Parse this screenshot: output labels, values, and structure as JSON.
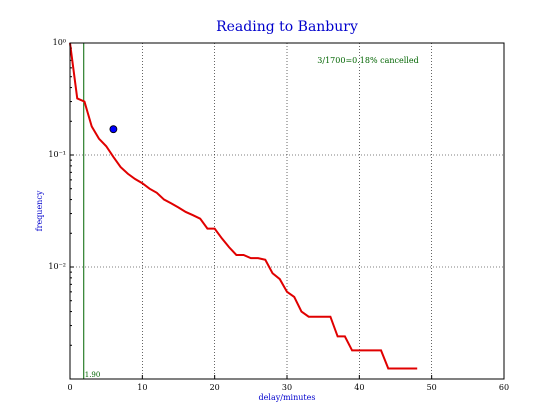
{
  "chart_data": {
    "type": "line",
    "title": "Reading to Banbury",
    "x_label": "delay/minutes",
    "y_label": "frequency",
    "log_y": true,
    "grid": true,
    "xlim": [
      0,
      60
    ],
    "xticks": [
      0,
      10,
      20,
      30,
      40,
      50,
      60
    ],
    "ylim": [
      0.001,
      1
    ],
    "yticks": [
      {
        "value": 1,
        "label": "10⁰"
      },
      {
        "value": 0.1,
        "label": "10⁻¹"
      },
      {
        "value": 0.01,
        "label": "10⁻²"
      }
    ],
    "series": [
      {
        "color": "#e00000",
        "x": [
          0,
          1,
          2,
          3,
          4,
          5,
          6,
          7,
          8,
          9,
          10,
          11,
          12,
          13,
          14,
          15,
          16,
          17,
          18,
          19,
          20,
          21,
          22,
          23,
          24,
          25,
          26,
          27,
          28,
          29,
          30,
          31,
          32,
          33,
          34,
          35,
          36,
          37,
          38,
          39,
          40,
          41,
          42,
          43,
          44,
          45,
          46,
          47,
          48
        ],
        "values": [
          1.0,
          0.32,
          0.3,
          0.18,
          0.14,
          0.12,
          0.096,
          0.078,
          0.068,
          0.061,
          0.056,
          0.05,
          0.046,
          0.04,
          0.037,
          0.034,
          0.031,
          0.029,
          0.027,
          0.022,
          0.022,
          0.018,
          0.015,
          0.0128,
          0.0128,
          0.012,
          0.012,
          0.0116,
          0.0088,
          0.0078,
          0.006,
          0.0054,
          0.004,
          0.0036,
          0.0036,
          0.0036,
          0.0036,
          0.0024,
          0.0024,
          0.0018,
          0.0018,
          0.0018,
          0.0018,
          0.0018,
          0.00124,
          0.00124,
          0.00124,
          0.00124,
          0.00124
        ]
      }
    ],
    "marker": {
      "x": 6,
      "y": 0.17,
      "color": "#0000ff"
    },
    "vline": {
      "value": 1.9,
      "label": "1.90",
      "color": "#006400"
    },
    "annotation": "3/1700=0.18% cancelled",
    "annotation_color": "#006400"
  }
}
